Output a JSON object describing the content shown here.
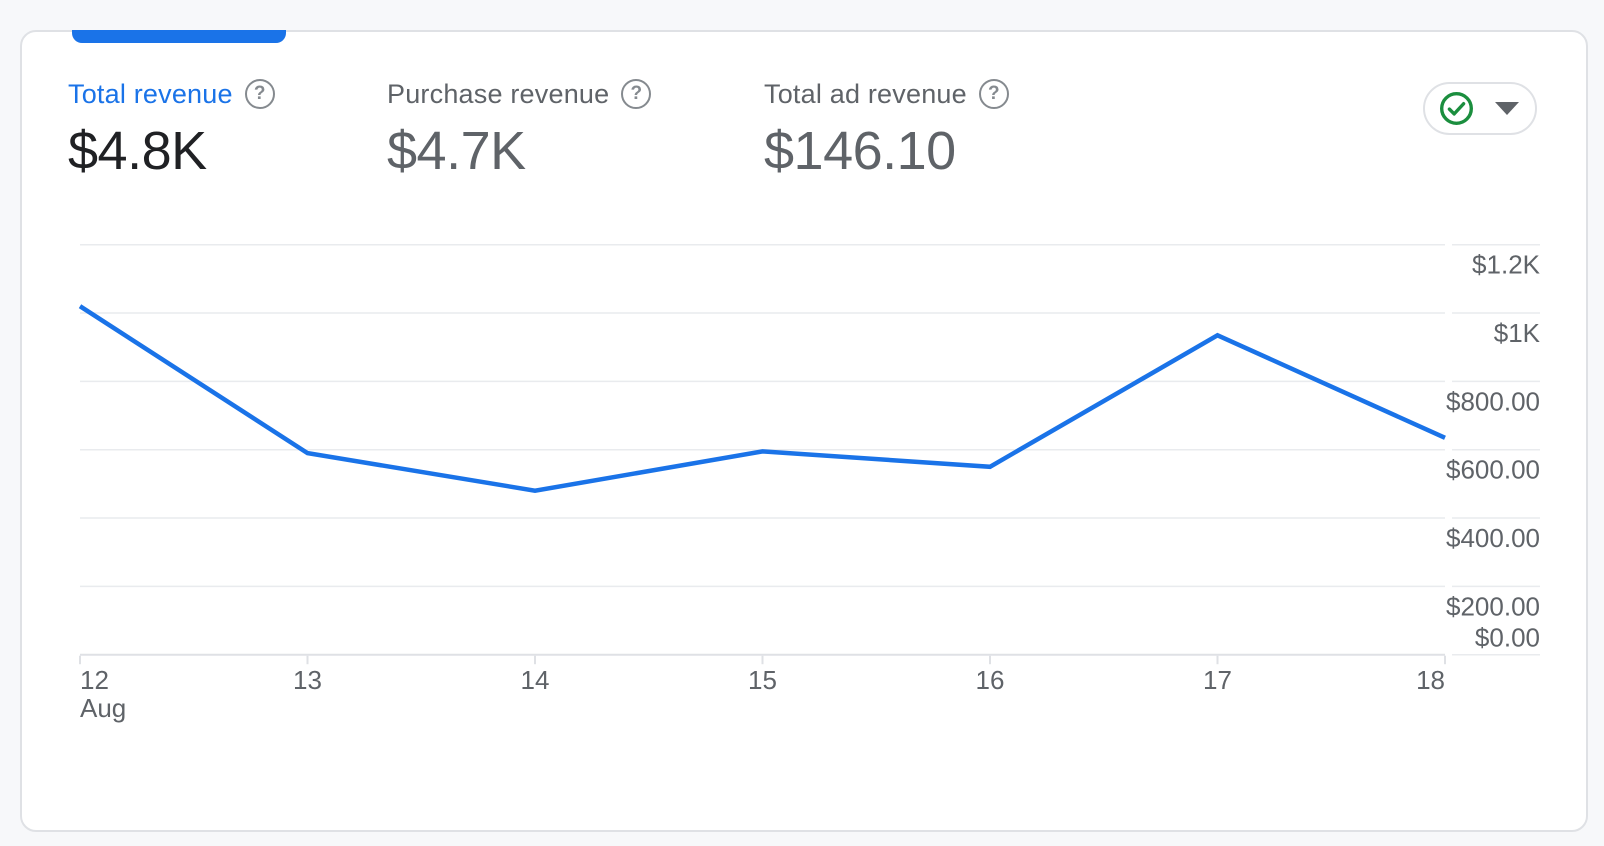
{
  "page": {
    "background_color": "#f7f8fa"
  },
  "card": {
    "background_color": "#ffffff",
    "border_color": "#dfe1e5",
    "tab_indicator_color": "#1a73e8"
  },
  "metrics": [
    {
      "label": "Total revenue",
      "value": "$4.8K",
      "selected": true,
      "label_color": "#1a73e8",
      "value_color": "#202124"
    },
    {
      "label": "Purchase revenue",
      "value": "$4.7K",
      "selected": false,
      "label_color": "#5f6368",
      "value_color": "#5f6368"
    },
    {
      "label": "Total ad revenue",
      "value": "$146.10",
      "selected": false,
      "label_color": "#5f6368",
      "value_color": "#5f6368"
    }
  ],
  "icons": {
    "help_glyph": "?",
    "help_icon_name": "question-mark-icon",
    "status_icon_name": "check-circle-icon",
    "status_icon_color": "#1b8e3e",
    "dropdown_icon_name": "caret-down-icon",
    "dropdown_icon_color": "#5f6368"
  },
  "chart_data": {
    "type": "line",
    "title": "",
    "categories": [
      "Aug 12",
      "Aug 13",
      "Aug 14",
      "Aug 15",
      "Aug 16",
      "Aug 17",
      "Aug 18"
    ],
    "x_tick_labels": [
      "12",
      "13",
      "14",
      "15",
      "16",
      "17",
      "18"
    ],
    "x_first_tick_sublabel": "Aug",
    "series": [
      {
        "name": "Total revenue",
        "values": [
          1020,
          590,
          480,
          595,
          550,
          935,
          635
        ]
      }
    ],
    "y_axis": {
      "side": "right",
      "tick_labels": [
        "$1.2K",
        "$1K",
        "$800.00",
        "$600.00",
        "$400.00",
        "$200.00",
        "$0.00"
      ],
      "tick_values": [
        1200,
        1000,
        800,
        600,
        400,
        200,
        0
      ],
      "min": 0,
      "max": 1260
    },
    "grid": true,
    "legend": "none",
    "line_color": "#1a73e8",
    "grid_color": "#e9ebee",
    "axis_line_color": "#dfe1e5",
    "tick_label_color": "#5f6368"
  }
}
